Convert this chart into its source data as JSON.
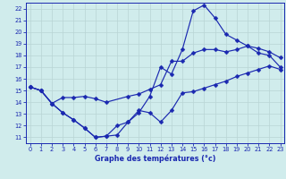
{
  "xlabel": "Graphe des températures (°c)",
  "bg_color": "#d0ecec",
  "grid_color": "#b8d4d4",
  "line_color": "#1a28b0",
  "xlim": [
    -0.4,
    23.4
  ],
  "ylim": [
    10.5,
    22.5
  ],
  "series1_x": [
    0,
    1,
    2,
    3,
    4,
    5,
    6,
    7,
    8,
    9,
    10,
    11,
    12,
    13,
    14,
    15,
    16,
    17,
    18,
    19,
    20,
    21,
    22,
    23
  ],
  "series1_y": [
    15.3,
    15.0,
    13.9,
    13.1,
    12.5,
    11.8,
    11.0,
    11.1,
    12.0,
    12.3,
    13.1,
    14.5,
    17.0,
    16.4,
    18.5,
    21.8,
    22.3,
    21.2,
    19.8,
    19.3,
    18.8,
    18.2,
    18.0,
    17.0
  ],
  "series2_x": [
    0,
    1,
    2,
    3,
    4,
    5,
    6,
    7,
    9,
    10,
    11,
    12,
    13,
    14,
    15,
    16,
    17,
    18,
    19,
    20,
    21,
    22,
    23
  ],
  "series2_y": [
    15.3,
    15.0,
    13.9,
    14.4,
    14.4,
    14.5,
    14.3,
    14.0,
    14.5,
    14.7,
    15.1,
    15.5,
    17.5,
    17.5,
    18.2,
    18.5,
    18.5,
    18.3,
    18.5,
    18.8,
    18.6,
    18.3,
    17.8
  ],
  "series3_x": [
    0,
    1,
    2,
    3,
    4,
    5,
    6,
    7,
    8,
    9,
    10,
    11,
    12,
    13,
    14,
    15,
    16,
    17,
    18,
    19,
    20,
    21,
    22,
    23
  ],
  "series3_y": [
    15.3,
    15.0,
    13.9,
    13.1,
    12.5,
    11.8,
    11.0,
    11.1,
    11.2,
    12.3,
    13.3,
    13.1,
    12.3,
    13.3,
    14.8,
    14.9,
    15.2,
    15.5,
    15.8,
    16.2,
    16.5,
    16.8,
    17.1,
    16.8
  ]
}
